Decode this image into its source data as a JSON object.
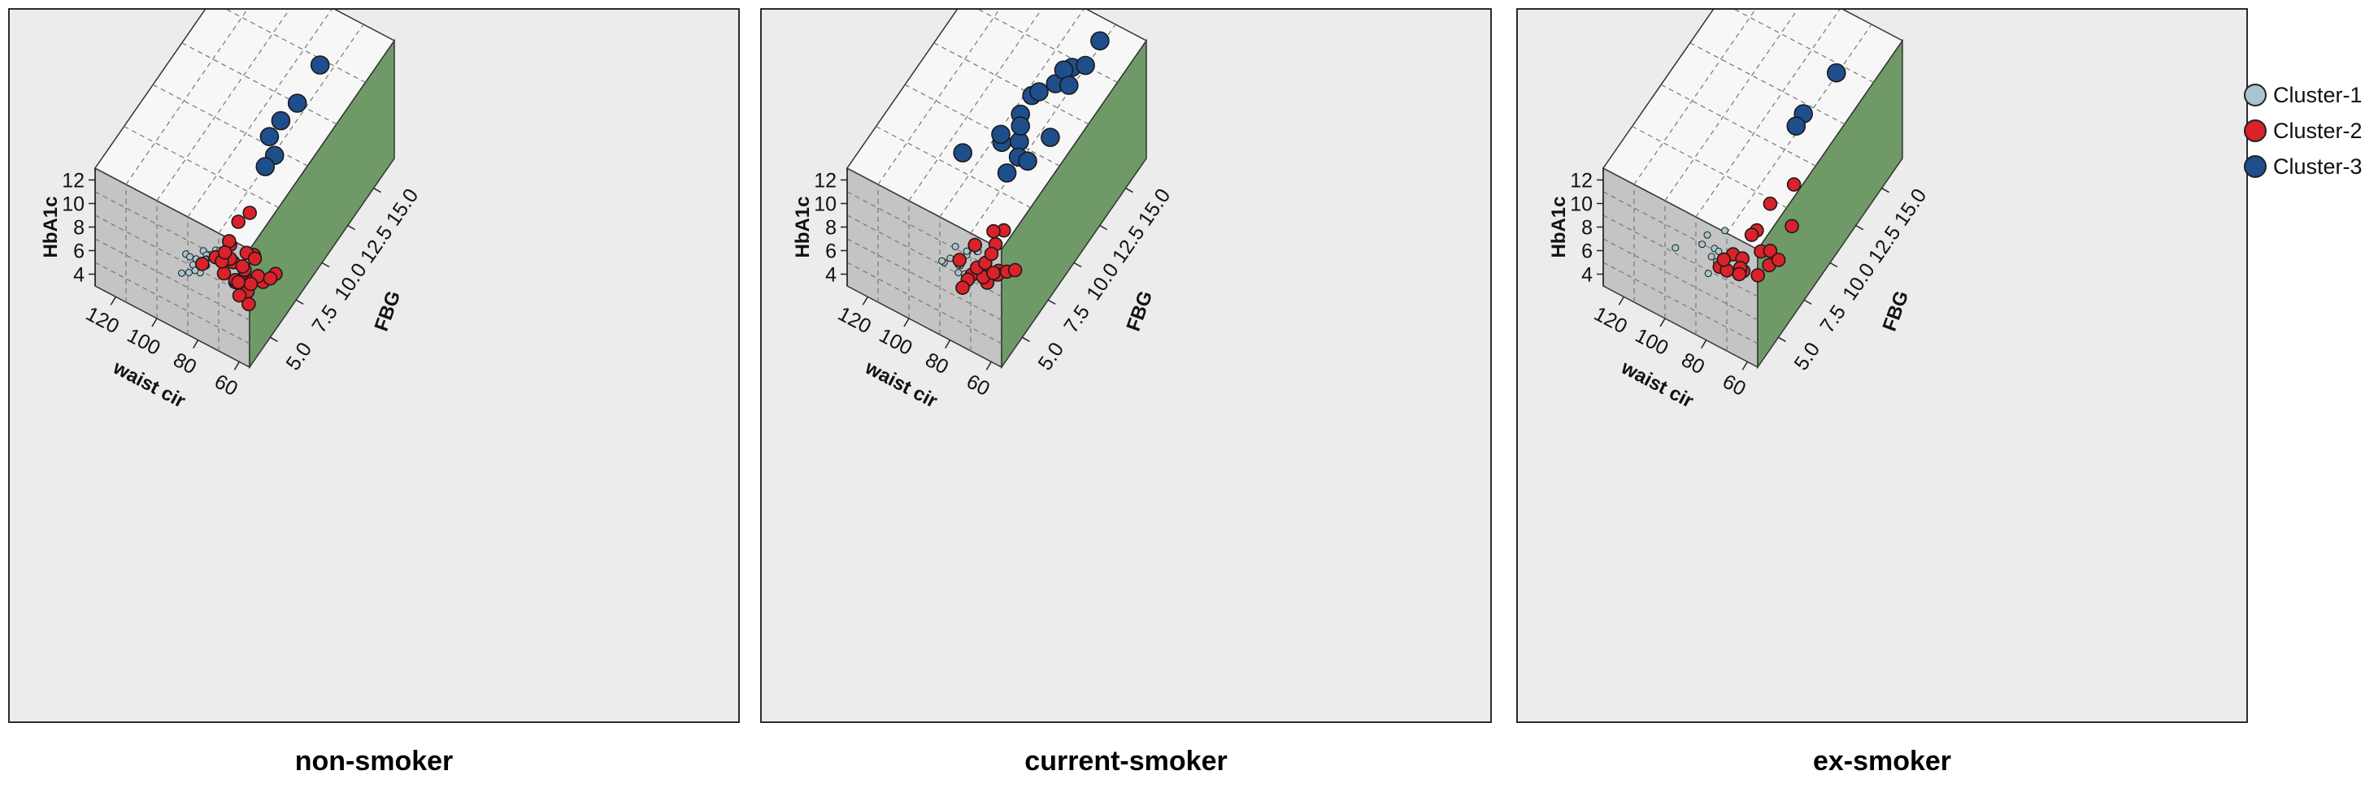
{
  "legend": {
    "items": [
      {
        "label": "Cluster-1",
        "color": "#a9c6d0"
      },
      {
        "label": "Cluster-2",
        "color": "#d9222a"
      },
      {
        "label": "Cluster-3",
        "color": "#1f4e8c"
      }
    ]
  },
  "colors": {
    "floor": "#c4c4c4",
    "right_wall": "#6f9a68",
    "top_face": "#f7f7f7",
    "panel_bg": "#ececec"
  },
  "chart_data": [
    {
      "type": "scatter3d",
      "caption": "non-smoker",
      "axes": {
        "z": {
          "label": "HbA1c",
          "ticks": [
            "4",
            "6",
            "8",
            "10",
            "12"
          ],
          "range": [
            3,
            13
          ]
        },
        "x": {
          "label": "waist cir",
          "ticks": [
            "60",
            "80",
            "100",
            "120"
          ],
          "range": [
            55,
            130
          ]
        },
        "y": {
          "label": "FBG",
          "ticks": [
            "5.0",
            "7.5",
            "10.0",
            "12.5",
            "15.0"
          ],
          "range": [
            3,
            17
          ]
        }
      },
      "series": [
        {
          "name": "Cluster-1",
          "points": [
            [
              96,
              5.0,
              6.3
            ],
            [
              92,
              5.2,
              6.0
            ],
            [
              88,
              4.8,
              5.7
            ],
            [
              90,
              5.5,
              6.5
            ],
            [
              85,
              5.2,
              7.0
            ],
            [
              94,
              5.3,
              5.2
            ],
            [
              89,
              5.6,
              6.1
            ],
            [
              82,
              5.1,
              7.8
            ],
            [
              86,
              5.0,
              6.8
            ],
            [
              91,
              4.9,
              5.5
            ],
            [
              84,
              5.4,
              6.4
            ],
            [
              87,
              5.2,
              5.9
            ],
            [
              93,
              4.8,
              6.6
            ],
            [
              80,
              5.0,
              7.2
            ],
            [
              95,
              5.1,
              4.7
            ],
            [
              98,
              5.0,
              4.5
            ],
            [
              83,
              5.7,
              6.9
            ],
            [
              88,
              5.3,
              6.2
            ]
          ]
        },
        {
          "name": "Cluster-2",
          "points": [
            [
              80,
              5.5,
              5.5
            ],
            [
              78,
              6.0,
              6.0
            ],
            [
              75,
              6.5,
              5.0
            ],
            [
              72,
              6.0,
              4.8
            ],
            [
              70,
              5.8,
              4.5
            ],
            [
              76,
              6.5,
              5.2
            ],
            [
              73,
              7.0,
              5.8
            ],
            [
              79,
              5.2,
              7.0
            ],
            [
              84,
              5.5,
              6.5
            ],
            [
              88,
              5.0,
              6.2
            ],
            [
              69,
              6.0,
              5.2
            ],
            [
              66,
              6.5,
              4.8
            ],
            [
              65,
              7.5,
              4.3
            ],
            [
              68,
              5.5,
              4.0
            ],
            [
              74,
              5.8,
              3.8
            ],
            [
              71,
              7.0,
              4.2
            ],
            [
              77,
              6.0,
              4.4
            ],
            [
              82,
              6.5,
              5.3
            ],
            [
              86,
              6.5,
              4.7
            ],
            [
              79,
              7.5,
              4.8
            ],
            [
              77,
              5.5,
              8.2
            ],
            [
              78,
              6.5,
              8.8
            ],
            [
              75,
              7.0,
              9.2
            ],
            [
              80,
              6.0,
              7.6
            ],
            [
              72,
              5.0,
              6.3
            ],
            [
              67,
              5.5,
              5.8
            ],
            [
              64,
              6.8,
              4.9
            ],
            [
              70,
              6.5,
              6.4
            ],
            [
              81,
              5.8,
              6.8
            ],
            [
              73,
              5.5,
              5.4
            ]
          ]
        },
        {
          "name": "Cluster-3",
          "points": [
            [
              76,
              14.0,
              12.8
            ],
            [
              77,
              12.0,
              12.0
            ],
            [
              80,
              11.0,
              11.5
            ],
            [
              83,
              10.5,
              10.5
            ],
            [
              78,
              10.0,
              10.0
            ],
            [
              80,
              9.5,
              9.5
            ]
          ]
        }
      ]
    },
    {
      "type": "scatter3d",
      "caption": "current-smoker",
      "axes": {
        "z": {
          "label": "HbA1c",
          "ticks": [
            "4",
            "6",
            "8",
            "10",
            "12"
          ],
          "range": [
            3,
            13
          ]
        },
        "x": {
          "label": "waist cir",
          "ticks": [
            "60",
            "80",
            "100",
            "120"
          ],
          "range": [
            55,
            130
          ]
        },
        "y": {
          "label": "FBG",
          "ticks": [
            "5.0",
            "7.5",
            "10.0",
            "12.5",
            "15.0"
          ],
          "range": [
            3,
            17
          ]
        }
      },
      "series": [
        {
          "name": "Cluster-1",
          "points": [
            [
              90,
              5.0,
              6.5
            ],
            [
              86,
              5.2,
              6.0
            ],
            [
              84,
              5.5,
              7.0
            ],
            [
              88,
              5.4,
              5.6
            ],
            [
              82,
              5.0,
              7.5
            ],
            [
              92,
              4.8,
              6.2
            ],
            [
              85,
              5.6,
              6.8
            ],
            [
              87,
              5.2,
              5.3
            ],
            [
              80,
              5.4,
              6.3
            ],
            [
              83,
              5.0,
              5.8
            ],
            [
              89,
              5.3,
              7.2
            ],
            [
              81,
              5.8,
              6.9
            ],
            [
              94,
              5.0,
              5.9
            ],
            [
              78,
              5.3,
              7.8
            ]
          ]
        },
        {
          "name": "Cluster-2",
          "points": [
            [
              82,
              5.5,
              5.2
            ],
            [
              78,
              6.0,
              5.5
            ],
            [
              76,
              5.8,
              4.7
            ],
            [
              80,
              6.2,
              4.3
            ],
            [
              84,
              5.5,
              4.6
            ],
            [
              74,
              6.5,
              5.0
            ],
            [
              79,
              5.4,
              6.2
            ],
            [
              77,
              6.8,
              6.6
            ],
            [
              72,
              6.0,
              5.5
            ],
            [
              85,
              5.2,
              4.2
            ],
            [
              74,
              7.0,
              7.8
            ],
            [
              76,
              6.4,
              8.3
            ],
            [
              70,
              6.5,
              5.3
            ],
            [
              81,
              6.6,
              4.9
            ],
            [
              73,
              5.8,
              5.8
            ],
            [
              79,
              6.8,
              5.6
            ],
            [
              66,
              6.5,
              5.8
            ],
            [
              83,
              6.0,
              7.0
            ],
            [
              88,
              5.5,
              5.9
            ]
          ]
        },
        {
          "name": "Cluster-3",
          "points": [
            [
              104,
              9.0,
              9.1
            ],
            [
              90,
              10.0,
              10.0
            ],
            [
              88,
              9.5,
              11.5
            ],
            [
              86,
              11.0,
              11.5
            ],
            [
              84,
              10.5,
              10.0
            ],
            [
              82,
              10.0,
              9.5
            ],
            [
              85,
              9.5,
              8.5
            ],
            [
              80,
              10.5,
              8.7
            ],
            [
              88,
              12.5,
              11.0
            ],
            [
              82,
              12.0,
              12.5
            ],
            [
              79,
              13.0,
              12.2
            ],
            [
              76,
              14.0,
              12.6
            ],
            [
              80,
              14.0,
              12.0
            ],
            [
              75,
              13.5,
              11.8
            ],
            [
              72,
              14.5,
              12.5
            ],
            [
              70,
              15.5,
              13.5
            ],
            [
              74,
              11.5,
              10.0
            ],
            [
              86,
              11.0,
              10.5
            ]
          ]
        }
      ]
    },
    {
      "type": "scatter3d",
      "caption": "ex-smoker",
      "axes": {
        "z": {
          "label": "HbA1c",
          "ticks": [
            "4",
            "6",
            "8",
            "10",
            "12"
          ],
          "range": [
            3,
            13
          ]
        },
        "x": {
          "label": "waist cir",
          "ticks": [
            "60",
            "80",
            "100",
            "120"
          ],
          "range": [
            55,
            130
          ]
        },
        "y": {
          "label": "FBG",
          "ticks": [
            "5.0",
            "7.5",
            "10.0",
            "12.5",
            "15.0"
          ],
          "range": [
            3,
            17
          ]
        }
      },
      "series": [
        {
          "name": "Cluster-1",
          "points": [
            [
              92,
              5.0,
              7.5
            ],
            [
              88,
              5.4,
              7.0
            ],
            [
              86,
              5.2,
              6.3
            ],
            [
              90,
              5.5,
              6.0
            ],
            [
              84,
              5.3,
              5.7
            ],
            [
              89,
              5.0,
              5.3
            ],
            [
              87,
              5.6,
              6.6
            ],
            [
              105,
              5.0,
              6.0
            ],
            [
              85,
              5.8,
              8.3
            ],
            [
              91,
              5.3,
              8.0
            ],
            [
              83,
              5.2,
              6.9
            ]
          ]
        },
        {
          "name": "Cluster-2",
          "points": [
            [
              82,
              6.0,
              6.3
            ],
            [
              80,
              6.5,
              5.5
            ],
            [
              78,
              6.2,
              5.0
            ],
            [
              76,
              7.5,
              5.2
            ],
            [
              74,
              8.0,
              4.8
            ],
            [
              86,
              5.5,
              5.5
            ],
            [
              84,
              5.8,
              5.0
            ],
            [
              81,
              6.5,
              4.6
            ],
            [
              72,
              7.5,
              4.4
            ],
            [
              75,
              7.0,
              3.9
            ],
            [
              70,
              8.0,
              4.4
            ],
            [
              78,
              7.5,
              6.8
            ],
            [
              74,
              8.0,
              8.8
            ],
            [
              70,
              9.5,
              8.9
            ],
            [
              77,
              6.8,
              7.4
            ],
            [
              66,
              8.5,
              7.0
            ],
            [
              79,
              6.0,
              4.9
            ],
            [
              84,
              5.5,
              6.3
            ]
          ]
        },
        {
          "name": "Cluster-3",
          "points": [
            [
              72,
              14.0,
              12.5
            ],
            [
              78,
              12.0,
              11.0
            ],
            [
              79,
              11.5,
              10.5
            ]
          ]
        }
      ]
    }
  ]
}
